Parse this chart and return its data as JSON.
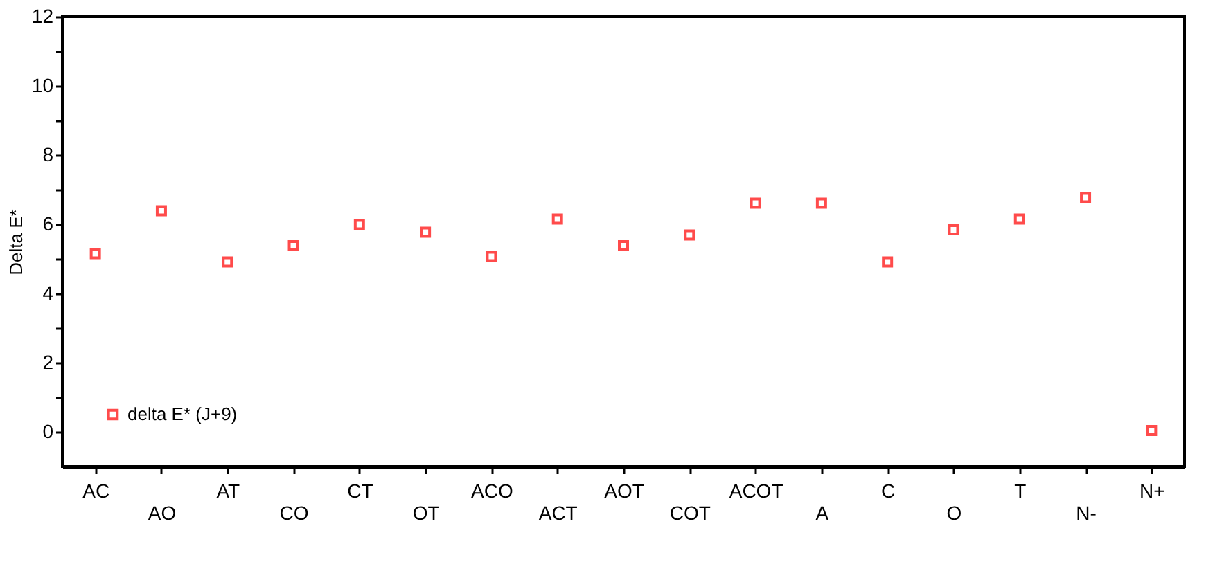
{
  "chart_data": {
    "type": "scatter",
    "ylabel": "Delta E*",
    "categories": [
      "AC",
      "AO",
      "AT",
      "CO",
      "CT",
      "OT",
      "ACO",
      "ACT",
      "AOT",
      "COT",
      "ACOT",
      "A",
      "C",
      "O",
      "T",
      "N-",
      "N+"
    ],
    "series": [
      {
        "name": "delta E* (J+9)",
        "color": "#ff0000",
        "values": [
          5.15,
          6.39,
          4.91,
          5.38,
          5.99,
          5.77,
          5.07,
          6.15,
          5.38,
          5.69,
          6.61,
          6.61,
          4.91,
          5.84,
          6.15,
          6.77,
          0.04
        ]
      }
    ],
    "ylim": [
      -1,
      12
    ],
    "yticks": [
      0,
      {
        "value": 1,
        "label": null
      },
      2,
      {
        "value": 3,
        "label": null
      },
      4,
      {
        "value": 5,
        "label": null
      },
      6,
      {
        "value": 7,
        "label": null
      },
      8,
      {
        "value": 9,
        "label": null
      },
      10,
      {
        "value": 11,
        "label": null
      },
      12
    ],
    "marker": "square",
    "legend": "bottom left",
    "grid": false
  }
}
